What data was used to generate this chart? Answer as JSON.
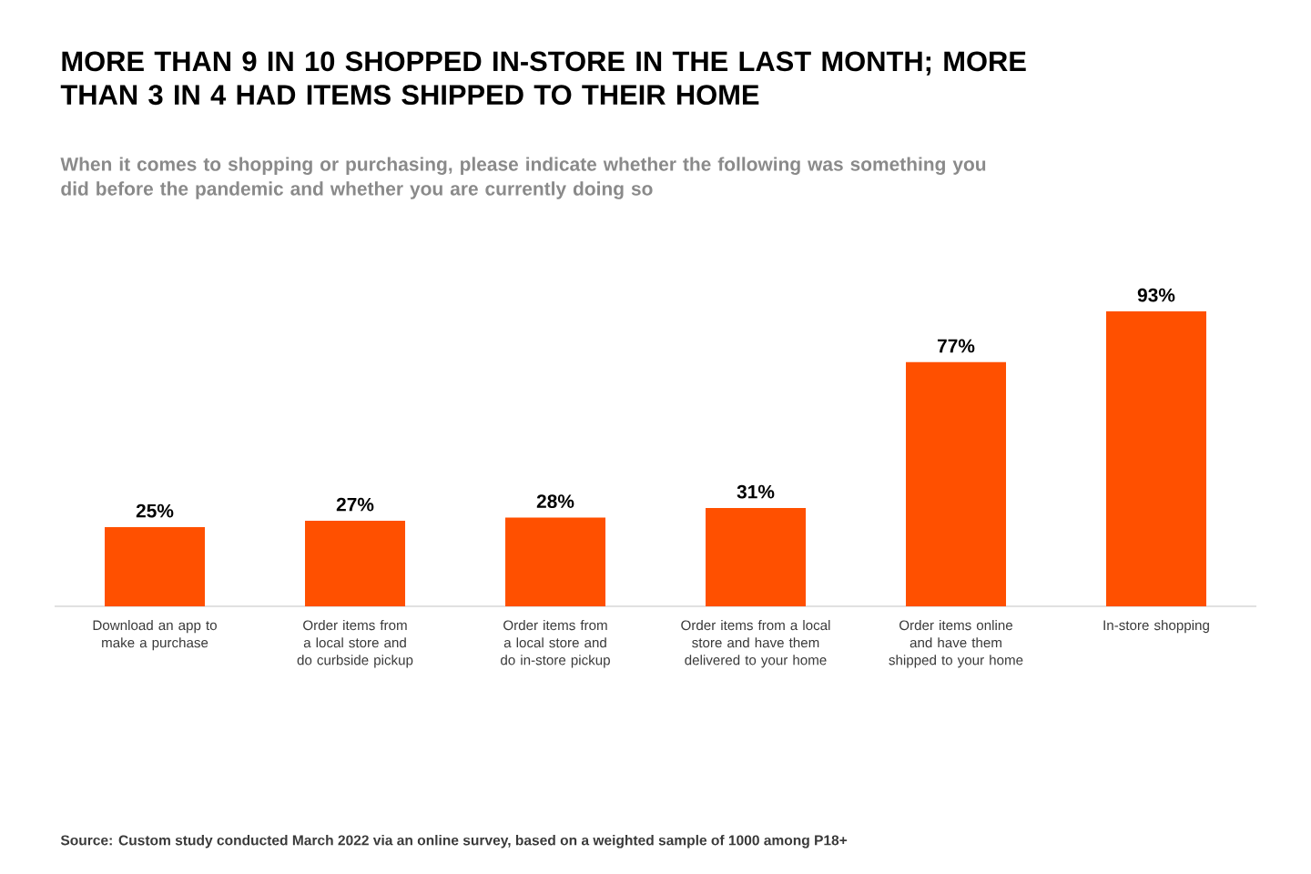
{
  "chart_data": {
    "type": "bar",
    "title": "MORE THAN 9 IN 10 SHOPPED IN-STORE IN THE LAST MONTH; MORE THAN 3 IN 4 HAD ITEMS SHIPPED TO THEIR HOME",
    "subtitle": "When it comes to shopping or purchasing, please indicate whether the following was something you did before the pandemic and whether you are currently doing so",
    "categories": [
      "Download an app to make a purchase",
      "Order items from a local store and do curbside pickup",
      "Order items from a local store and do in-store pickup",
      "Order items from a local store and have them delivered to your home",
      "Order items online and have them shipped to your home",
      "In-store shopping"
    ],
    "values": [
      25,
      27,
      28,
      31,
      77,
      93
    ],
    "value_labels": [
      "25%",
      "27%",
      "28%",
      "31%",
      "77%",
      "93%"
    ],
    "color": "#ff5000",
    "annotations": [
      "Source: Custom study conducted March 2022 via an online survey, based on a weighted sample of 1000 among P18+"
    ]
  }
}
